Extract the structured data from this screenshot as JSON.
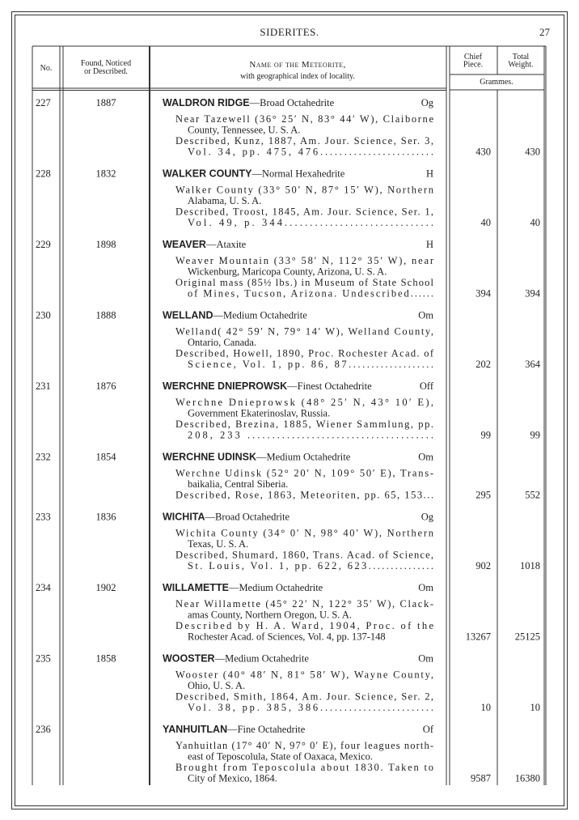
{
  "header": {
    "title": "SIDERITES.",
    "page": "27"
  },
  "columns": {
    "no": [
      "No."
    ],
    "found": [
      "Found, Noticed",
      "or Described."
    ],
    "name": [
      "Name of the Meteorite,",
      "with geographical index of locality."
    ],
    "chief": [
      "Chief",
      "Piece."
    ],
    "total": [
      "Total",
      "Weight."
    ],
    "unit": "Grammes."
  },
  "rows": [
    {
      "no": "227",
      "year": "1887",
      "name": "WALDRON RIDGE",
      "type": "—Broad Octahedrite",
      "code": "Og",
      "paragraphs": [
        [
          "Near Tazewell (36° 25′ N, 83° 44′ W), Claiborne",
          "County, Tennessee, U. S. A."
        ],
        [
          "Described, Kunz, 1887, Am. Jour. Science, Ser. 3,",
          "Vol. 34, pp. 475, 476........................"
        ]
      ],
      "chief": "430",
      "total": "430"
    },
    {
      "no": "228",
      "year": "1832",
      "name": "WALKER COUNTY",
      "type": "—Normal Hexahedrite",
      "code": "H",
      "paragraphs": [
        [
          "Walker County (33° 50′ N, 87° 15′ W), Northern",
          "Alabama, U. S. A."
        ],
        [
          "Described, Troost, 1845, Am. Jour. Science, Ser. 1,",
          "Vol. 49, p. 344.............................."
        ]
      ],
      "chief": "40",
      "total": "40"
    },
    {
      "no": "229",
      "year": "1898",
      "name": "WEAVER",
      "type": "—Ataxite",
      "code": "H",
      "paragraphs": [
        [
          "Weaver Mountain (33° 58′ N, 112° 35′ W), near",
          "Wickenburg, Maricopa County, Arizona, U. S. A."
        ],
        [
          "Original mass (85½ lbs.) in Museum of State School",
          "of Mines, Tucson, Arizona. Undescribed......"
        ]
      ],
      "chief": "394",
      "total": "394"
    },
    {
      "no": "230",
      "year": "1888",
      "name": "WELLAND",
      "type": "—Medium Octahedrite",
      "code": "Om",
      "paragraphs": [
        [
          "Welland( 42° 59′ N, 79° 14′ W), Welland County,",
          "Ontario, Canada."
        ],
        [
          "Described, Howell, 1890, Proc. Rochester Acad. of",
          "Science, Vol. 1, pp. 86, 87..................."
        ]
      ],
      "chief": "202",
      "total": "364"
    },
    {
      "no": "231",
      "year": "1876",
      "name": "WERCHNE DNIEPROWSK",
      "type": "—Finest Octahedrite",
      "code": "Off",
      "paragraphs": [
        [
          "Werchne Dnieprowsk (48° 25′ N, 43° 10′ E),",
          "Government Ekaterinoslav, Russia."
        ],
        [
          "Described, Brezina, 1885, Wiener Sammlung, pp.",
          "208, 233 ......................................"
        ]
      ],
      "chief": "99",
      "total": "99"
    },
    {
      "no": "232",
      "year": "1854",
      "name": "WERCHNE UDINSK",
      "type": "—Medium Octahedrite",
      "code": "Om",
      "paragraphs": [
        [
          "Werchne Udinsk (52° 20′ N, 109° 50′ E), Trans-",
          "baikalia, Central Siberia."
        ],
        [
          "Described, Rose, 1863, Meteoriten, pp. 65, 153..."
        ]
      ],
      "chief": "295",
      "total": "552"
    },
    {
      "no": "233",
      "year": "1836",
      "name": "WICHITA",
      "type": "—Broad Octahedrite",
      "code": "Og",
      "paragraphs": [
        [
          "Wichita County (34° 0′ N, 98° 40′ W), Northern",
          "Texas, U. S. A."
        ],
        [
          "Described, Shumard, 1860, Trans. Acad. of Science,",
          "St. Louis, Vol. 1, pp. 622, 623..............."
        ]
      ],
      "chief": "902",
      "total": "1018"
    },
    {
      "no": "234",
      "year": "1902",
      "name": "WILLAMETTE",
      "type": "—Medium Octahedrite",
      "code": "Om",
      "paragraphs": [
        [
          "Near Willamette (45° 22′ N, 122° 35′ W), Clack-",
          "amas County, Northern Oregon, U. S. A."
        ],
        [
          "Described by H. A. Ward, 1904, Proc. of the",
          "Rochester Acad. of Sciences, Vol. 4, pp. 137-148"
        ]
      ],
      "chief": "13267",
      "total": "25125"
    },
    {
      "no": "235",
      "year": "1858",
      "name": "WOOSTER",
      "type": "—Medium Octahedrite",
      "code": "Om",
      "paragraphs": [
        [
          "Wooster (40° 48′ N, 81° 58′ W), Wayne County,",
          "Ohio, U. S. A."
        ],
        [
          "Described, Smith, 1864, Am. Jour. Science, Ser. 2,",
          "Vol. 38, pp. 385, 386........................"
        ]
      ],
      "chief": "10",
      "total": "10"
    },
    {
      "no": "236",
      "year": "",
      "name": "YANHUITLAN",
      "type": "—Fine Octahedrite",
      "code": "Of",
      "paragraphs": [
        [
          "Yanhuitlan (17° 40′ N, 97° 0′ E), four leagues north-",
          "east of Teposcolula, State of Oaxaca, Mexico."
        ],
        [
          "Brought from Teposcolula about 1830. Taken to",
          "City of Mexico, 1864."
        ]
      ],
      "chief": "9587",
      "total": "16380"
    }
  ]
}
